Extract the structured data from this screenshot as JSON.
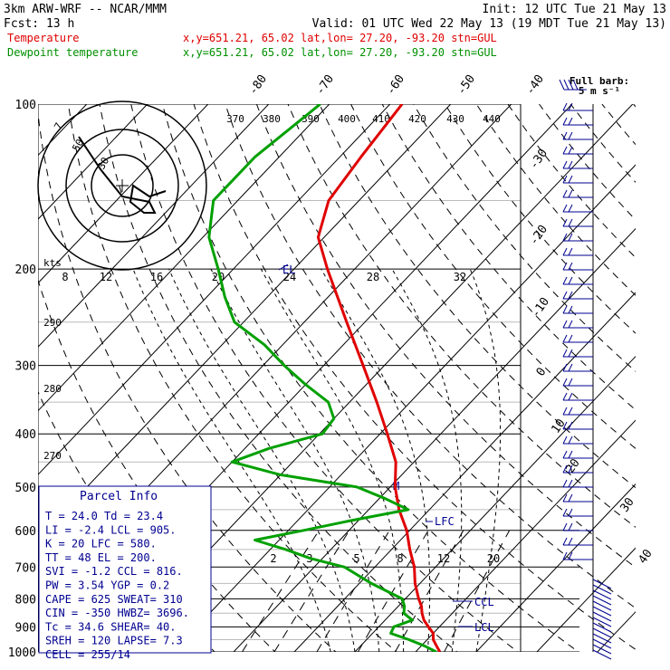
{
  "header": {
    "title": "3km ARW-WRF -- NCAR/MMM",
    "init": "Init: 12 UTC Tue 21 May 13",
    "fcst": "Fcst:   13 h",
    "valid": "Valid: 01 UTC Wed 22 May 13 (19 MDT Tue 21 May 13)",
    "temp_label": "Temperature",
    "dew_label": "Dewpoint temperature",
    "temp_info": "x,y=651.21, 65.02   lat,lon= 27.20, -93.20  stn=GUL",
    "dew_info": "x,y=651.21, 65.02   lat,lon= 27.20, -93.20  stn=GUL"
  },
  "colors": {
    "temperature": "#e00000",
    "dewpoint": "#00a000",
    "header_red": "#e00000",
    "header_green": "#009000",
    "wind": "#000090",
    "parcel": "#000090",
    "grid": "#000000"
  },
  "pressure_labels": [
    "100",
    "200",
    "300",
    "400",
    "500",
    "600",
    "700",
    "800",
    "900",
    "1000"
  ],
  "isotherm_labels": [
    "-80",
    "-70",
    "-60",
    "-50",
    "-40",
    "-30",
    "-20",
    "-10",
    "0",
    "10",
    "20",
    "30",
    "40"
  ],
  "theta_labels": [
    "370",
    "380",
    "390",
    "400",
    "410",
    "420",
    "430",
    "440"
  ],
  "left_theta_labels": [
    "290",
    "280",
    "270"
  ],
  "mixing_ratio_labels": [
    "2",
    "3",
    "5",
    "8",
    "12",
    "20"
  ],
  "hodograph": {
    "speed_unit": "kts",
    "ring_labels": [
      "30",
      "50"
    ],
    "speed_axis_labels": [
      "8",
      "12",
      "16",
      "20",
      "24",
      "28",
      "32"
    ]
  },
  "wind_barb_key": {
    "line1": "Full barb:",
    "line2": "5 m s⁻¹"
  },
  "level_markers": [
    "EL",
    "LFC",
    "CCL",
    "LCL",
    "M"
  ],
  "parcel_info": {
    "title": "Parcel Info",
    "rows": [
      "T   =   24.0  Td =  23.4",
      "LI  =   -2.4  LCL =  905.",
      "K   =     20  LFC =  580.",
      "TT  =     48  EL  =  200.",
      "SVI =   -1.2  CCL =  816.",
      "PW  =   3.54  YGP =   0.2",
      "CAPE =   625  SWEAT=  310",
      "CIN  =  -350  HWBZ= 3696.",
      "Tc  =   34.6  SHEAR=  40.",
      "SREH =   120  LAPSE=  7.3",
      "CELL = 255/14"
    ]
  },
  "chart_data": {
    "type": "line",
    "diagram": "skew-T log-p",
    "y_axis_label": "",
    "ylim": [
      1000,
      100
    ],
    "x_axis_label": "",
    "series": [
      {
        "name": "Temperature",
        "p": [
          1000,
          975,
          950,
          925,
          900,
          875,
          850,
          825,
          800,
          750,
          700,
          650,
          600,
          550,
          500,
          450,
          400,
          350,
          300,
          250,
          200,
          175,
          150,
          125,
          100
        ],
        "t": [
          24.0,
          22.5,
          21.0,
          20.0,
          18.2,
          16.4,
          15.0,
          13.8,
          12.2,
          9.2,
          6.5,
          3.0,
          -0.5,
          -5.0,
          -9.2,
          -13.0,
          -18.8,
          -25.5,
          -33.5,
          -43.0,
          -54.5,
          -61.0,
          -65.0,
          -66.5,
          -68.0
        ]
      },
      {
        "name": "Dewpoint temperature",
        "p": [
          1000,
          975,
          950,
          925,
          900,
          875,
          850,
          825,
          800,
          750,
          700,
          675,
          650,
          625,
          600,
          575,
          550,
          525,
          500,
          475,
          450,
          425,
          400,
          375,
          350,
          325,
          300,
          275,
          250,
          225,
          200,
          175,
          150,
          125,
          100
        ],
        "t": [
          23.4,
          20.5,
          17.0,
          13.0,
          12.5,
          14.5,
          12.0,
          11.0,
          9.5,
          2.0,
          -5.0,
          -12.0,
          -17.5,
          -24.0,
          -17.5,
          -11.0,
          -3.5,
          -9.0,
          -15.5,
          -30.0,
          -40.0,
          -36.0,
          -29.5,
          -30.0,
          -33.5,
          -40.0,
          -46.5,
          -53.0,
          -61.5,
          -67.0,
          -72.5,
          -79.0,
          -84.0,
          -84.0,
          -81.5
        ]
      }
    ],
    "hodograph_trace": {
      "u": [
        8,
        5,
        2,
        1.5,
        4,
        6,
        5,
        0,
        -4,
        -8
      ],
      "v": [
        -1,
        -2,
        0,
        -3,
        -5,
        -5,
        -3,
        -2,
        3,
        9
      ]
    },
    "wind_barbs_shown": true
  }
}
